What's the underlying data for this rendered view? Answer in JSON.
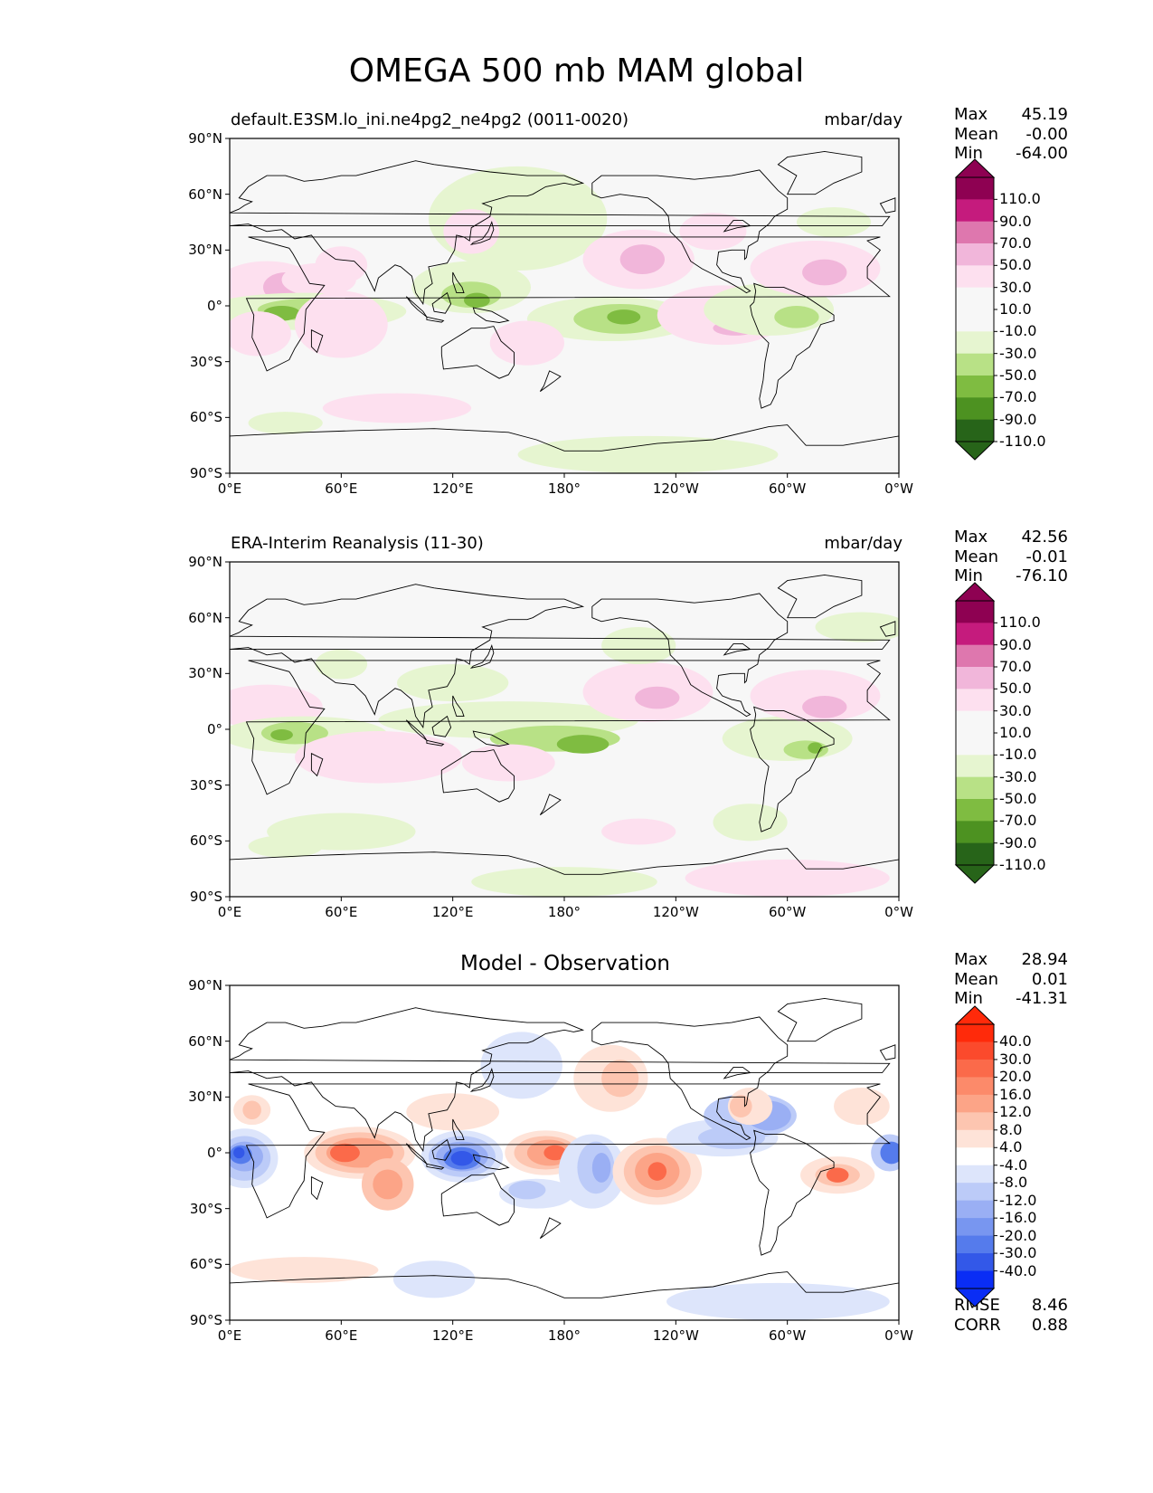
{
  "title": "OMEGA 500 mb MAM global",
  "lon_ticks": [
    "0°E",
    "60°E",
    "120°E",
    "180°",
    "120°W",
    "60°W",
    "0°W"
  ],
  "lat_ticks": [
    "90°N",
    "60°N",
    "30°N",
    "0°",
    "30°S",
    "60°S",
    "90°S"
  ],
  "panels": [
    {
      "id": "model",
      "title_left": "default.E3SM.lo_ini.ne4pg2_ne4pg2 (0011-0020)",
      "title_right": "mbar/day",
      "title_center": "",
      "stats": [
        {
          "label": "Max",
          "value": "45.19"
        },
        {
          "label": "Mean",
          "value": "-0.00"
        },
        {
          "label": "Min",
          "value": "-64.00"
        }
      ],
      "colorbar": {
        "labels": [
          "110.0",
          "90.0",
          "70.0",
          "50.0",
          "30.0",
          "10.0",
          "-10.0",
          "-30.0",
          "-50.0",
          "-70.0",
          "-90.0",
          "-110.0"
        ],
        "colors": [
          "#8e0152",
          "#c51b7d",
          "#de77ae",
          "#f1b6da",
          "#fde0ef",
          "#f7f7f7",
          "#f7f7f7",
          "#e6f5d0",
          "#b8e186",
          "#7fbc41",
          "#4d9221",
          "#276419"
        ]
      }
    },
    {
      "id": "obs",
      "title_left": "ERA-Interim Reanalysis (11-30)",
      "title_right": "mbar/day",
      "title_center": "",
      "stats": [
        {
          "label": "Max",
          "value": "42.56"
        },
        {
          "label": "Mean",
          "value": "-0.01"
        },
        {
          "label": "Min",
          "value": "-76.10"
        }
      ],
      "colorbar": {
        "labels": [
          "110.0",
          "90.0",
          "70.0",
          "50.0",
          "30.0",
          "10.0",
          "-10.0",
          "-30.0",
          "-50.0",
          "-70.0",
          "-90.0",
          "-110.0"
        ],
        "colors": [
          "#8e0152",
          "#c51b7d",
          "#de77ae",
          "#f1b6da",
          "#fde0ef",
          "#f7f7f7",
          "#f7f7f7",
          "#e6f5d0",
          "#b8e186",
          "#7fbc41",
          "#4d9221",
          "#276419"
        ]
      }
    },
    {
      "id": "diff",
      "title_left": "",
      "title_right": "",
      "title_center": "Model - Observation",
      "stats": [
        {
          "label": "Max",
          "value": "28.94"
        },
        {
          "label": "Mean",
          "value": "0.01"
        },
        {
          "label": "Min",
          "value": "-41.31"
        }
      ],
      "colorbar": {
        "labels": [
          "40.0",
          "30.0",
          "20.0",
          "16.0",
          "12.0",
          "8.0",
          "4.0",
          "-4.0",
          "-8.0",
          "-12.0",
          "-16.0",
          "-20.0",
          "-30.0",
          "-40.0"
        ],
        "colors": [
          "#ff2a0a",
          "#fb4a2c",
          "#fb6a4a",
          "#fc8a6a",
          "#fca487",
          "#fdc5b0",
          "#fee3d8",
          "#ffffff",
          "#dde5fb",
          "#bccbf8",
          "#9aaff4",
          "#7896f0",
          "#557bec",
          "#3358e8",
          "#0a2df5"
        ]
      },
      "extra_stats": [
        {
          "label": "RMSE",
          "value": "8.46"
        },
        {
          "label": "CORR",
          "value": "0.88"
        }
      ]
    }
  ]
}
